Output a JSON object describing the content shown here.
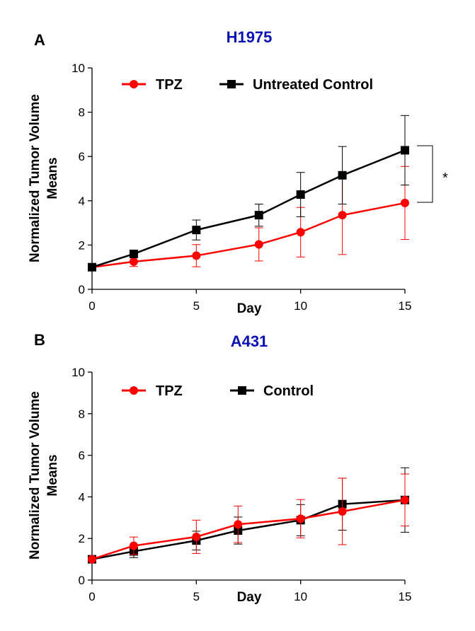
{
  "chart_data": [
    {
      "panel": "A",
      "type": "line",
      "title": "H1975",
      "xlabel": "Day",
      "ylabel_line1": "Normalized Tumor Volume",
      "ylabel_line2": "Means",
      "xlim": [
        0,
        15
      ],
      "ylim": [
        0,
        10
      ],
      "xticks": [
        0,
        5,
        10,
        15
      ],
      "yticks": [
        0,
        2,
        4,
        6,
        8,
        10
      ],
      "grid": false,
      "legend_position": "top",
      "significance": "*",
      "series": [
        {
          "name": "TPZ",
          "color": "#ff0000",
          "marker": "circle",
          "x": [
            0,
            2,
            5,
            8,
            10,
            12,
            15
          ],
          "values": [
            1.0,
            1.25,
            1.52,
            2.03,
            2.58,
            3.35,
            3.9
          ],
          "errors": [
            0.05,
            0.22,
            0.5,
            0.75,
            1.12,
            1.78,
            1.65
          ]
        },
        {
          "name": "Untreated Control",
          "color": "#000000",
          "marker": "square",
          "x": [
            0,
            2,
            5,
            8,
            10,
            12,
            15
          ],
          "values": [
            1.0,
            1.6,
            2.68,
            3.35,
            4.28,
            5.15,
            6.28
          ],
          "errors": [
            0.05,
            0.15,
            0.45,
            0.5,
            1.0,
            1.3,
            1.57
          ]
        }
      ]
    },
    {
      "panel": "B",
      "type": "line",
      "title": "A431",
      "xlabel": "Day",
      "ylabel_line1": "Normalized Tumor Volume",
      "ylabel_line2": "Means",
      "xlim": [
        0,
        15
      ],
      "ylim": [
        0,
        10
      ],
      "xticks": [
        0,
        5,
        10,
        15
      ],
      "yticks": [
        0,
        2,
        4,
        6,
        8,
        10
      ],
      "grid": false,
      "legend_position": "top",
      "series": [
        {
          "name": "TPZ",
          "color": "#ff0000",
          "marker": "circle",
          "x": [
            0,
            2,
            5,
            7,
            10,
            12,
            15
          ],
          "values": [
            1.0,
            1.65,
            2.08,
            2.68,
            2.95,
            3.3,
            3.85
          ],
          "errors": [
            0.05,
            0.42,
            0.8,
            0.88,
            0.92,
            1.6,
            1.25
          ]
        },
        {
          "name": "Control",
          "color": "#000000",
          "marker": "square",
          "x": [
            0,
            2,
            5,
            7,
            10,
            12,
            15
          ],
          "values": [
            1.0,
            1.38,
            1.9,
            2.38,
            2.88,
            3.65,
            3.85
          ],
          "errors": [
            0.05,
            0.3,
            0.45,
            0.65,
            0.75,
            1.25,
            1.55
          ]
        }
      ]
    }
  ]
}
